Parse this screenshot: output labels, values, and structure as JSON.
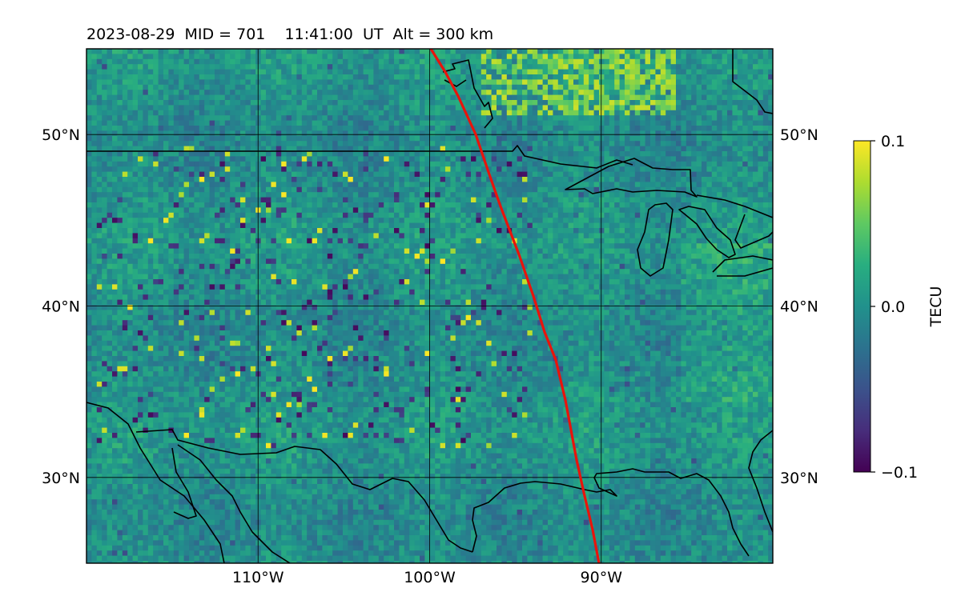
{
  "title": "2023-08-29  MID = 701    11:41:00  UT  Alt = 300 km",
  "map": {
    "lon_range": [
      -120,
      -80
    ],
    "lat_range": [
      25,
      55
    ],
    "lon_ticks": [
      {
        "value": -110,
        "label": "110°W"
      },
      {
        "value": -100,
        "label": "100°W"
      },
      {
        "value": -90,
        "label": "90°W"
      }
    ],
    "lat_ticks": [
      {
        "value": 30,
        "label": "30°N"
      },
      {
        "value": 40,
        "label": "40°N"
      },
      {
        "value": 50,
        "label": "50°N"
      }
    ],
    "grid": true,
    "field": "differential TEC perturbation field (viridis)",
    "track_color": "#e8140c",
    "coastline_color": "#000000"
  },
  "colorbar": {
    "label": "TECU",
    "min": -0.1,
    "max": 0.1,
    "ticks": [
      {
        "value": 0.1,
        "label": "0.1"
      },
      {
        "value": 0.0,
        "label": "0.0"
      },
      {
        "value": -0.1,
        "label": "−0.1"
      }
    ],
    "colormap": "viridis"
  }
}
